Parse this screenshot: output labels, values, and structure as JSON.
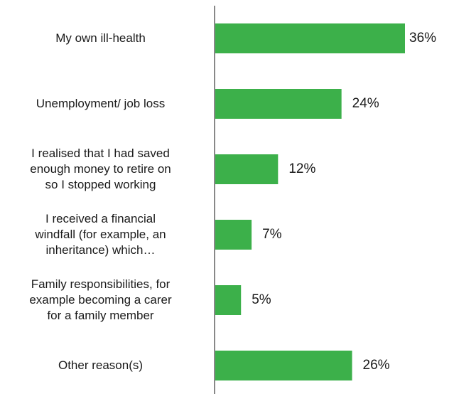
{
  "chart_data": {
    "type": "bar",
    "orientation": "horizontal",
    "categories": [
      "My own ill-health",
      "Unemployment/ job loss",
      "I realised that I had saved enough money to retire on so I stopped working",
      "I received a financial windfall (for example, an inheritance) which…",
      "Family responsibilities, for example becoming a carer for a family member",
      "Other reason(s)"
    ],
    "category_lines": [
      [
        "My own ill-health"
      ],
      [
        "Unemployment/ job loss"
      ],
      [
        "I realised that I had saved",
        "enough money to retire on",
        "so I stopped working"
      ],
      [
        "I received a financial",
        "windfall (for example, an",
        "inheritance) which…"
      ],
      [
        "Family responsibilities, for",
        "example becoming a carer",
        "for a family member"
      ],
      [
        "Other reason(s)"
      ]
    ],
    "values": [
      36,
      24,
      12,
      7,
      5,
      26
    ],
    "value_labels": [
      "36%",
      "24%",
      "12%",
      "7%",
      "5%",
      "26%"
    ],
    "xlim": [
      0,
      36
    ],
    "grid": false,
    "bar_color": "#3cb04a",
    "axis_color": "#888888"
  }
}
